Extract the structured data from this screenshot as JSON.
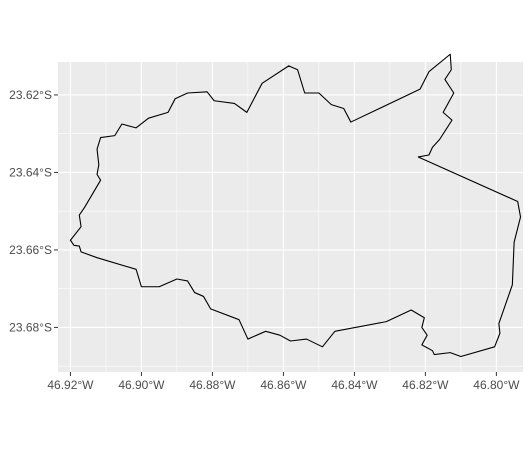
{
  "chart_data": {
    "type": "map",
    "title": "",
    "xlabel": "",
    "ylabel": "",
    "xlim": [
      -46.9235,
      -46.7925
    ],
    "ylim": [
      -23.6915,
      -23.6115
    ],
    "grid": true,
    "panel_background": "#ebebeb",
    "grid_color": "#ffffff",
    "outline_color": "#000000",
    "x_ticks": [
      {
        "value": -46.92,
        "label": "46.92°W"
      },
      {
        "value": -46.9,
        "label": "46.90°W"
      },
      {
        "value": -46.88,
        "label": "46.88°W"
      },
      {
        "value": -46.86,
        "label": "46.86°W"
      },
      {
        "value": -46.84,
        "label": "46.84°W"
      },
      {
        "value": -46.82,
        "label": "46.82°W"
      },
      {
        "value": -46.8,
        "label": "46.80°W"
      }
    ],
    "y_ticks": [
      {
        "value": -23.62,
        "label": "23.62°S"
      },
      {
        "value": -23.64,
        "label": "23.64°S"
      },
      {
        "value": -23.66,
        "label": "23.66°S"
      },
      {
        "value": -23.68,
        "label": "23.68°S"
      }
    ],
    "boundary": [
      [
        -46.8127,
        -23.6135
      ],
      [
        -46.8145,
        -23.616
      ],
      [
        -46.812,
        -23.6195
      ],
      [
        -46.815,
        -23.6245
      ],
      [
        -46.8125,
        -23.6265
      ],
      [
        -46.816,
        -23.6315
      ],
      [
        -46.818,
        -23.6335
      ],
      [
        -46.819,
        -23.6355
      ],
      [
        -46.822,
        -23.636
      ],
      [
        -46.794,
        -23.6475
      ],
      [
        -46.7932,
        -23.6515
      ],
      [
        -46.795,
        -23.658
      ],
      [
        -46.7955,
        -23.669
      ],
      [
        -46.7993,
        -23.679
      ],
      [
        -46.799,
        -23.6815
      ],
      [
        -46.8005,
        -23.685
      ],
      [
        -46.81,
        -23.6875
      ],
      [
        -46.813,
        -23.6865
      ],
      [
        -46.8175,
        -23.687
      ],
      [
        -46.818,
        -23.686
      ],
      [
        -46.821,
        -23.6845
      ],
      [
        -46.8195,
        -23.682
      ],
      [
        -46.821,
        -23.68
      ],
      [
        -46.8203,
        -23.6775
      ],
      [
        -46.824,
        -23.6755
      ],
      [
        -46.831,
        -23.6785
      ],
      [
        -46.8455,
        -23.681
      ],
      [
        -46.849,
        -23.685
      ],
      [
        -46.8535,
        -23.683
      ],
      [
        -46.858,
        -23.6835
      ],
      [
        -46.861,
        -23.682
      ],
      [
        -46.865,
        -23.681
      ],
      [
        -46.87,
        -23.683
      ],
      [
        -46.8725,
        -23.678
      ],
      [
        -46.8805,
        -23.6752
      ],
      [
        -46.8825,
        -23.672
      ],
      [
        -46.885,
        -23.671
      ],
      [
        -46.887,
        -23.668
      ],
      [
        -46.89,
        -23.6675
      ],
      [
        -46.895,
        -23.6695
      ],
      [
        -46.9,
        -23.6695
      ],
      [
        -46.9015,
        -23.665
      ],
      [
        -46.9125,
        -23.662
      ],
      [
        -46.917,
        -23.6605
      ],
      [
        -46.9175,
        -23.659
      ],
      [
        -46.919,
        -23.6588
      ],
      [
        -46.92,
        -23.6575
      ],
      [
        -46.917,
        -23.654
      ],
      [
        -46.9175,
        -23.651
      ],
      [
        -46.916,
        -23.649
      ],
      [
        -46.9115,
        -23.642
      ],
      [
        -46.9125,
        -23.6405
      ],
      [
        -46.912,
        -23.638
      ],
      [
        -46.9125,
        -23.634
      ],
      [
        -46.9115,
        -23.631
      ],
      [
        -46.9075,
        -23.6305
      ],
      [
        -46.9055,
        -23.6275
      ],
      [
        -46.9015,
        -23.6285
      ],
      [
        -46.898,
        -23.626
      ],
      [
        -46.8925,
        -23.6245
      ],
      [
        -46.8905,
        -23.621
      ],
      [
        -46.887,
        -23.6195
      ],
      [
        -46.8815,
        -23.6192
      ],
      [
        -46.8795,
        -23.6215
      ],
      [
        -46.8738,
        -23.6222
      ],
      [
        -46.8703,
        -23.6245
      ],
      [
        -46.866,
        -23.617
      ],
      [
        -46.8585,
        -23.6125
      ],
      [
        -46.856,
        -23.6135
      ],
      [
        -46.854,
        -23.6195
      ],
      [
        -46.85,
        -23.6195
      ],
      [
        -46.8465,
        -23.6225
      ],
      [
        -46.843,
        -23.6235
      ],
      [
        -46.841,
        -23.627
      ],
      [
        -46.8215,
        -23.6185
      ],
      [
        -46.819,
        -23.614
      ],
      [
        -46.813,
        -23.6095
      ],
      [
        -46.8127,
        -23.6135
      ]
    ]
  }
}
